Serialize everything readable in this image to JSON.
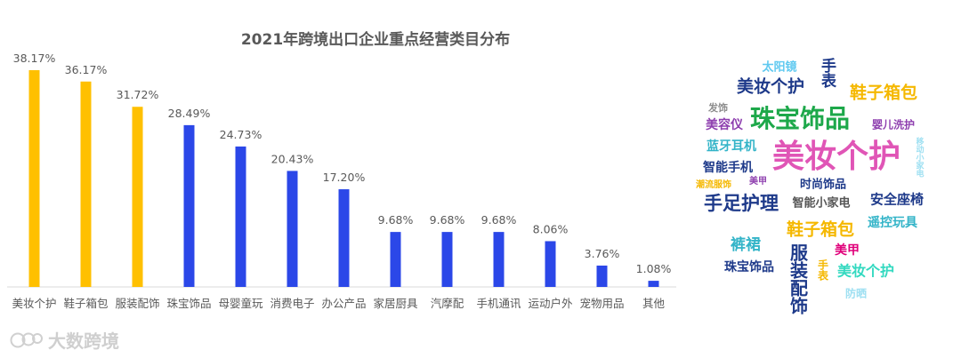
{
  "chart_data": {
    "type": "bar",
    "title": "2021年跨境出口企业重点经营类目分布",
    "categories": [
      "美妆个护",
      "鞋子箱包",
      "服装配饰",
      "珠宝饰品",
      "母婴童玩",
      "消费电子",
      "办公产品",
      "家居厨具",
      "汽摩配",
      "手机通讯",
      "运动户外",
      "宠物用品",
      "其他"
    ],
    "values": [
      38.17,
      36.17,
      31.72,
      28.49,
      24.73,
      20.43,
      17.2,
      9.68,
      9.68,
      9.68,
      8.06,
      3.76,
      1.08
    ],
    "value_labels": [
      "38.17%",
      "36.17%",
      "31.72%",
      "28.49%",
      "24.73%",
      "20.43%",
      "17.20%",
      "9.68%",
      "9.68%",
      "9.68%",
      "8.06%",
      "3.76%",
      "1.08%"
    ],
    "ylim": [
      0,
      40
    ],
    "grid": false,
    "colors": {
      "highlight": "#FFC000",
      "normal": "#2B47E8",
      "highlight_count": 3
    }
  },
  "word_cloud": [
    {
      "text": "太阳镜",
      "color": "#5FC9F0"
    },
    {
      "text": "手表",
      "color": "#1E3A8A"
    },
    {
      "text": "美妆个护",
      "color": "#1E3A8A"
    },
    {
      "text": "鞋子箱包",
      "color": "#F5B800"
    },
    {
      "text": "发饰",
      "color": "#8C8C8C"
    },
    {
      "text": "珠宝饰品",
      "color": "#1DA84A"
    },
    {
      "text": "美容仪",
      "color": "#8E3FAF"
    },
    {
      "text": "婴儿洗护",
      "color": "#8E3FAF"
    },
    {
      "text": "美妆个护",
      "color": "#E055B6"
    },
    {
      "text": "蓝牙耳机",
      "color": "#33B4C8"
    },
    {
      "text": "智能手机",
      "color": "#1E3A8A"
    },
    {
      "text": "移动小家电",
      "color": "#9FE0F2"
    },
    {
      "text": "潮流服饰",
      "color": "#F5B800"
    },
    {
      "text": "美甲",
      "color": "#8E3FAF"
    },
    {
      "text": "时尚饰品",
      "color": "#1E3A8A"
    },
    {
      "text": "手足护理",
      "color": "#1E3A8A"
    },
    {
      "text": "智能小家电",
      "color": "#555555"
    },
    {
      "text": "安全座椅",
      "color": "#1E3A8A"
    },
    {
      "text": "鞋子箱包",
      "color": "#F5B800"
    },
    {
      "text": "遥控玩具",
      "color": "#33B4C8"
    },
    {
      "text": "裤裙",
      "color": "#33B4C8"
    },
    {
      "text": "美甲",
      "color": "#E0007A"
    },
    {
      "text": "服装配饰",
      "color": "#1E3A8A"
    },
    {
      "text": "珠宝饰品",
      "color": "#1E3A8A"
    },
    {
      "text": "手表",
      "color": "#F5B800"
    },
    {
      "text": "美妆个护",
      "color": "#33D9C0"
    },
    {
      "text": "防晒",
      "color": "#9FE0F2"
    }
  ],
  "watermark": "大数跨境"
}
